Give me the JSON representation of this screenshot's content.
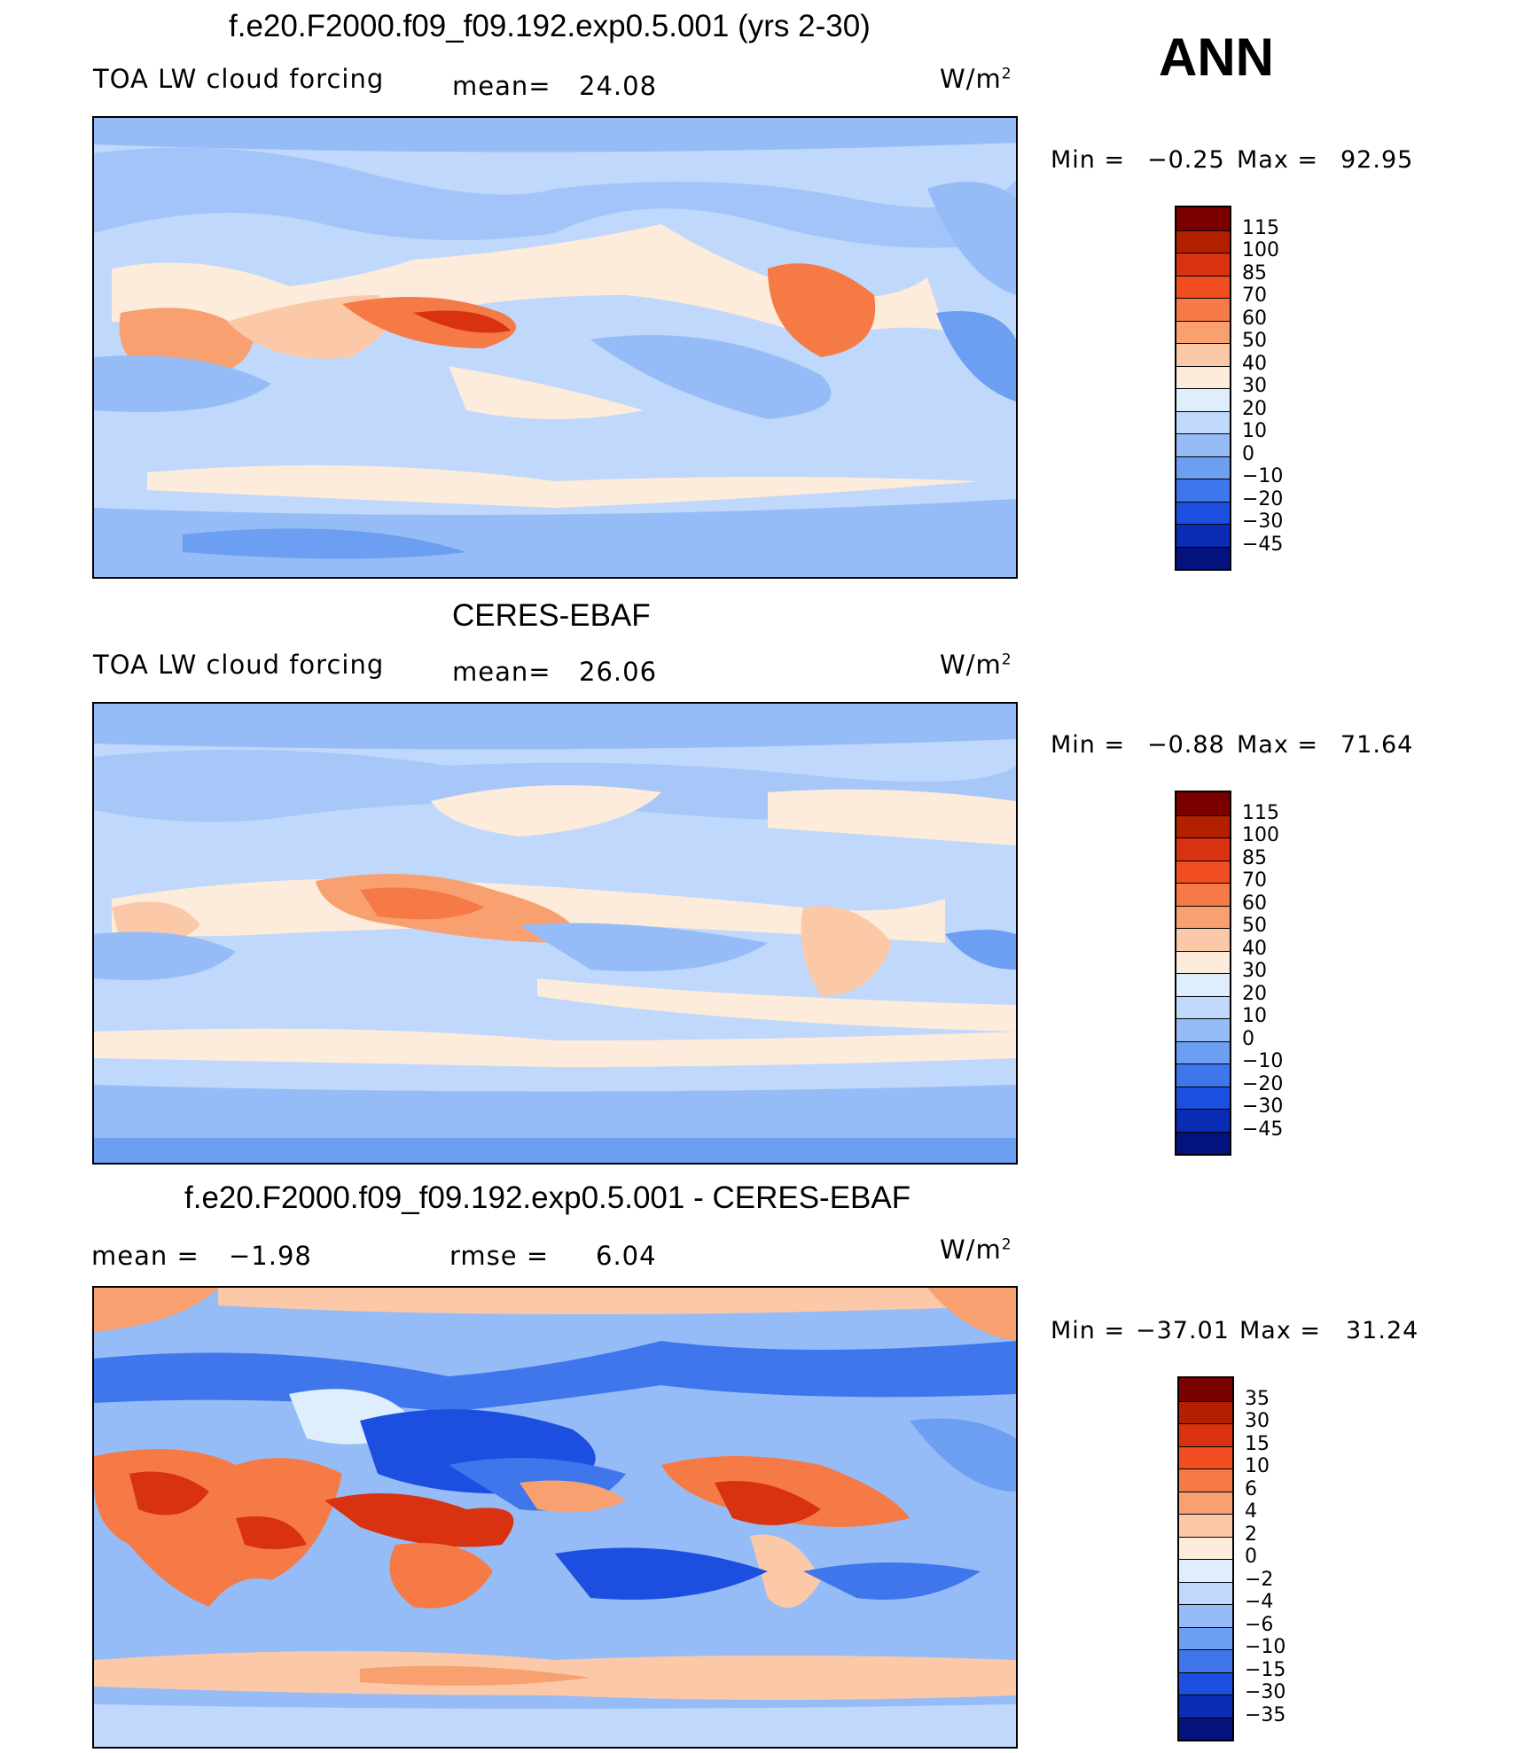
{
  "season": "ANN",
  "panels": [
    {
      "title": "f.e20.F2000.f09_f09.192.exp0.5.001 (yrs 2-30)",
      "left_label": "TOA LW cloud forcing",
      "mean_label": "mean=",
      "mean_value": "24.08",
      "units": "W/m",
      "units_sup": "2",
      "min_label": "Min =",
      "min_value": "-0.25",
      "max_label": "Max =",
      "max_value": "92.95",
      "levels": [
        "115",
        "100",
        "85",
        "70",
        "60",
        "50",
        "40",
        "30",
        "20",
        "10",
        "0",
        "-10",
        "-20",
        "-30",
        "-45"
      ]
    },
    {
      "title": "CERES-EBAF",
      "left_label": "TOA LW cloud forcing",
      "mean_label": "mean=",
      "mean_value": "26.06",
      "units": "W/m",
      "units_sup": "2",
      "min_label": "Min =",
      "min_value": "-0.88",
      "max_label": "Max =",
      "max_value": "71.64",
      "levels": [
        "115",
        "100",
        "85",
        "70",
        "60",
        "50",
        "40",
        "30",
        "20",
        "10",
        "0",
        "-10",
        "-20",
        "-30",
        "-45"
      ]
    },
    {
      "title": "f.e20.F2000.f09_f09.192.exp0.5.001 - CERES-EBAF",
      "mean_label": "mean =",
      "mean_value": "-1.98",
      "rmse_label": "rmse =",
      "rmse_value": "6.04",
      "units": "W/m",
      "units_sup": "2",
      "min_label": "Min =",
      "min_value": "-37.01",
      "max_label": "Max =",
      "max_value": "31.24",
      "levels": [
        "35",
        "30",
        "15",
        "10",
        "6",
        "4",
        "2",
        "0",
        "-2",
        "-4",
        "-6",
        "-10",
        "-15",
        "-30",
        "-35"
      ]
    }
  ],
  "colors": {
    "bar16": [
      "#7a0000",
      "#b32000",
      "#d83210",
      "#f04e20",
      "#f57a45",
      "#f8a070",
      "#fbc9a8",
      "#fdebdb",
      "#dfeefd",
      "#bfd8fb",
      "#96bcf7",
      "#6c9ef2",
      "#3f76ec",
      "#1c4fe0",
      "#0b2db5",
      "#04127e"
    ],
    "model_ocean": "#bfd8fb",
    "warm_light": "#fdebdb",
    "warm_mid": "#f8a070",
    "warm_strong": "#f05a2a",
    "cool_mid": "#96bcf7",
    "cool_strong": "#6c9ef2",
    "cool_deep": "#3f76ec",
    "pale": "#dfeefd"
  }
}
